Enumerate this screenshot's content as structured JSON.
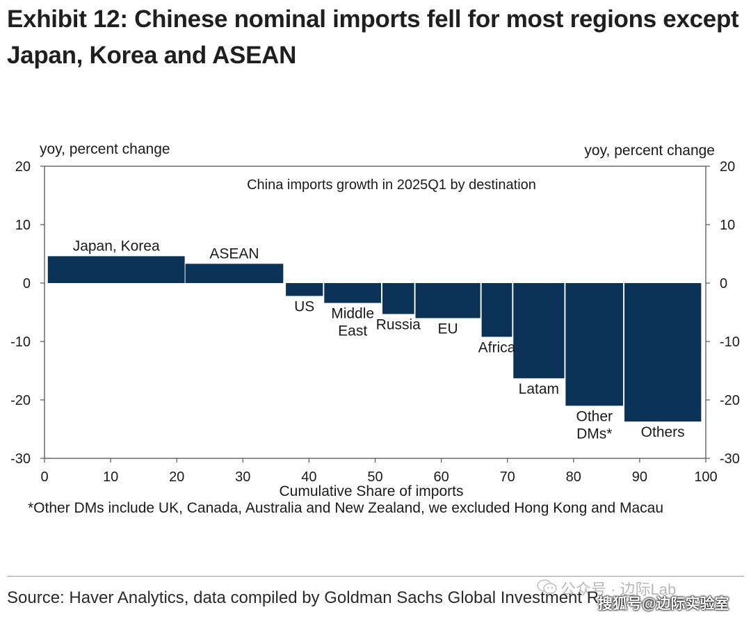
{
  "title": "Exhibit 12: Chinese nominal imports fell for most regions except Japan, Korea and ASEAN",
  "footnote": "*Other DMs include UK, Canada, Australia and New Zealand, we excluded Hong Kong and Macau",
  "source": "Source: Haver Analytics, data compiled by Goldman Sachs Global Investment R",
  "watermark": {
    "top": "公众号 · 边际Lab",
    "bottom": "搜狐号@边际实验室",
    "icon": "wechat-icon"
  },
  "chart_data": {
    "type": "bar",
    "subtitle": "China imports growth in 2025Q1 by destination",
    "ylabel_left": "yoy, percent change",
    "ylabel_right": "yoy, percent change",
    "xlabel": "Cumulative Share of imports",
    "xlim": [
      0,
      100
    ],
    "ylim": [
      -30,
      20
    ],
    "xticks": [
      0,
      10,
      20,
      30,
      40,
      50,
      60,
      70,
      80,
      90,
      100
    ],
    "yticks": [
      20,
      10,
      0,
      -10,
      -20,
      -30
    ],
    "grid": false,
    "bar_color": "#0b3358",
    "bars": [
      {
        "label": [
          "Japan, Korea"
        ],
        "x_start": 0.5,
        "x_end": 21.2,
        "value": 4.6
      },
      {
        "label": [
          "ASEAN"
        ],
        "x_start": 21.3,
        "x_end": 36.1,
        "value": 3.3
      },
      {
        "label": [
          "US"
        ],
        "x_start": 36.5,
        "x_end": 42.1,
        "value": -2.2
      },
      {
        "label": [
          "Middle",
          "East"
        ],
        "x_start": 42.3,
        "x_end": 50.9,
        "value": -3.4
      },
      {
        "label": [
          "Russia"
        ],
        "x_start": 51.1,
        "x_end": 55.9,
        "value": -5.3
      },
      {
        "label": [
          "EU"
        ],
        "x_start": 56.1,
        "x_end": 65.9,
        "value": -6.0
      },
      {
        "label": [
          "Africa"
        ],
        "x_start": 66.1,
        "x_end": 70.7,
        "value": -9.2
      },
      {
        "label": [
          "Latam"
        ],
        "x_start": 70.9,
        "x_end": 78.6,
        "value": -16.3
      },
      {
        "label": [
          "Other",
          "DMs*"
        ],
        "x_start": 78.8,
        "x_end": 87.5,
        "value": -21.0
      },
      {
        "label": [
          "Others"
        ],
        "x_start": 87.7,
        "x_end": 99.3,
        "value": -23.7
      }
    ]
  }
}
